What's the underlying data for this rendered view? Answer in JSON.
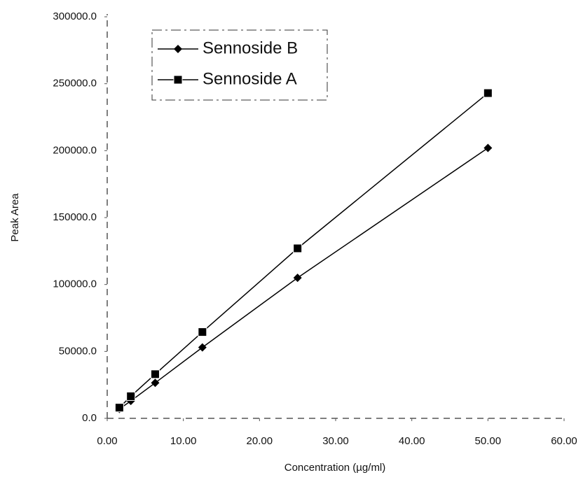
{
  "chart_data": {
    "type": "line",
    "x_label": "Concentration (µg/ml)",
    "y_label": "Peak Area",
    "x": [
      1.6,
      3.1,
      6.3,
      12.5,
      25,
      50
    ],
    "series": [
      {
        "name": "Sennoside B",
        "color": "#000000",
        "marker": "diamond",
        "values": [
          7000,
          13000,
          26500,
          53000,
          105000,
          202000
        ]
      },
      {
        "name": "Sennoside A",
        "color": "#000000",
        "marker": "square",
        "values": [
          8000,
          16500,
          33000,
          64500,
          127000,
          243000
        ]
      }
    ],
    "xlim": [
      0,
      60
    ],
    "xticks": [
      {
        "value": 0,
        "label": "0.00"
      },
      {
        "value": 10,
        "label": "10.00"
      },
      {
        "value": 20,
        "label": "20.00"
      },
      {
        "value": 30,
        "label": "30.00"
      },
      {
        "value": 40,
        "label": "40.00"
      },
      {
        "value": 50,
        "label": "50.00"
      },
      {
        "value": 60,
        "label": "60.00"
      }
    ],
    "ylim": [
      0,
      300000
    ],
    "yticks": [
      {
        "value": 0,
        "label": "0.0"
      },
      {
        "value": 50000,
        "label": "50000.0"
      },
      {
        "value": 100000,
        "label": "100000.0"
      },
      {
        "value": 150000,
        "label": "150000.0"
      },
      {
        "value": 200000,
        "label": "200000.0"
      },
      {
        "value": 250000,
        "label": "250000.0"
      },
      {
        "value": 300000,
        "label": "300000.0"
      }
    ],
    "grid": false,
    "legend": "upper left"
  }
}
